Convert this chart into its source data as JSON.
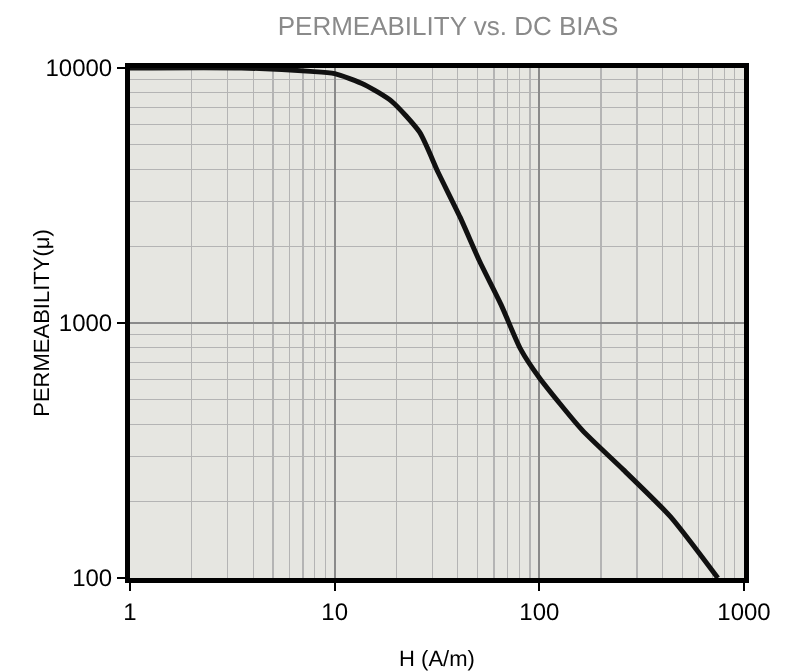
{
  "chart_data": {
    "type": "line",
    "title": "PERMEABILITY vs. DC BIAS",
    "xlabel": "H (A/m)",
    "ylabel": "PERMEABILITY(μ)",
    "log": "xy",
    "grid": true,
    "marker": "none",
    "line_style": "solid",
    "series": [
      {
        "color": "#111111",
        "x": [
          1,
          3.5,
          7.6,
          10,
          14,
          19,
          26,
          32,
          41,
          51,
          65,
          81,
          100,
          162,
          257,
          437,
          745
        ],
        "values": [
          10000,
          10000,
          9700,
          9500,
          8600,
          7400,
          5600,
          3900,
          2600,
          1750,
          1180,
          790,
          610,
          380,
          266,
          174,
          100
        ]
      }
    ],
    "xlim": [
      1,
      1000
    ],
    "ylim": [
      100,
      10000
    ],
    "xticks": [
      1,
      {
        "value": 2,
        "label": null
      },
      {
        "value": 3,
        "label": null
      },
      {
        "value": 4,
        "label": null
      },
      {
        "value": 5,
        "label": null
      },
      {
        "value": 6,
        "label": null
      },
      {
        "value": 7,
        "label": null
      },
      {
        "value": 8,
        "label": null
      },
      {
        "value": 9,
        "label": null
      },
      10,
      {
        "value": 20,
        "label": null
      },
      {
        "value": 30,
        "label": null
      },
      {
        "value": 40,
        "label": null
      },
      {
        "value": 50,
        "label": null
      },
      {
        "value": 60,
        "label": null
      },
      {
        "value": 70,
        "label": null
      },
      {
        "value": 80,
        "label": null
      },
      {
        "value": 90,
        "label": null
      },
      100,
      {
        "value": 200,
        "label": null
      },
      {
        "value": 300,
        "label": null
      },
      {
        "value": 400,
        "label": null
      },
      {
        "value": 500,
        "label": null
      },
      {
        "value": 600,
        "label": null
      },
      {
        "value": 700,
        "label": null
      },
      {
        "value": 800,
        "label": null
      },
      {
        "value": 900,
        "label": null
      },
      1000
    ],
    "yticks": [
      100,
      {
        "value": 200,
        "label": null
      },
      {
        "value": 300,
        "label": null
      },
      {
        "value": 400,
        "label": null
      },
      {
        "value": 500,
        "label": null
      },
      {
        "value": 600,
        "label": null
      },
      {
        "value": 700,
        "label": null
      },
      {
        "value": 800,
        "label": null
      },
      {
        "value": 900,
        "label": null
      },
      1000,
      {
        "value": 2000,
        "label": null
      },
      {
        "value": 3000,
        "label": null
      },
      {
        "value": 4000,
        "label": null
      },
      {
        "value": 5000,
        "label": null
      },
      {
        "value": 6000,
        "label": null
      },
      {
        "value": 7000,
        "label": null
      },
      {
        "value": 8000,
        "label": null
      },
      {
        "value": 9000,
        "label": null
      },
      10000
    ]
  }
}
